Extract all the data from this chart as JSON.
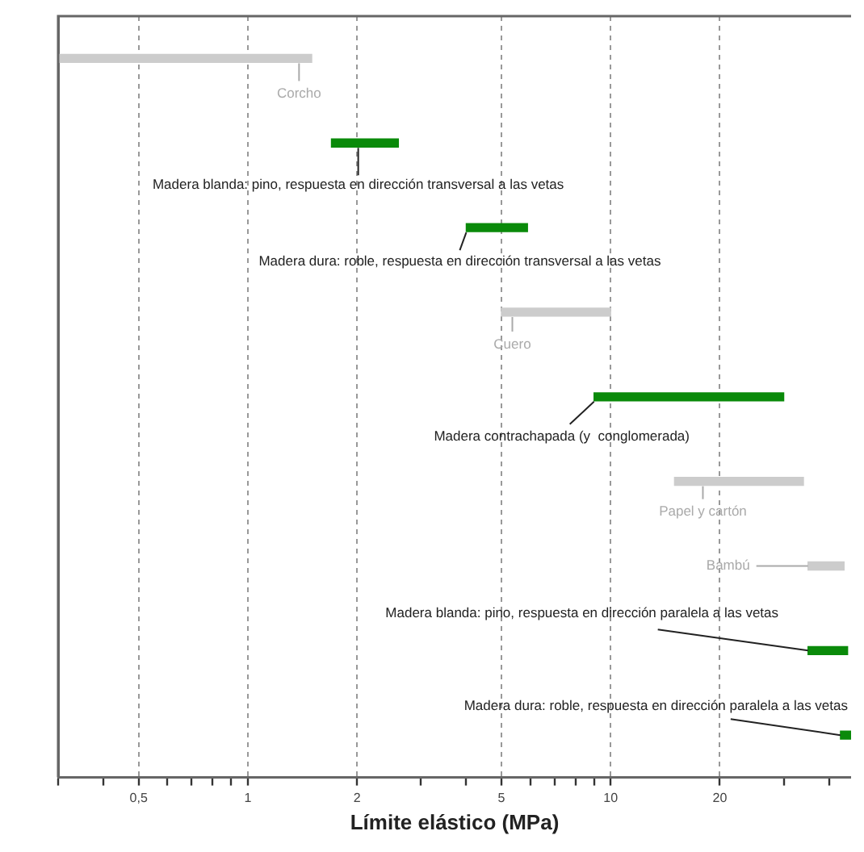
{
  "chart_data": {
    "type": "bar",
    "orientation": "horizontal",
    "xlabel": "Límite elástico (MPa)",
    "categories": [
      null,
      null,
      null,
      null,
      null,
      null,
      null,
      null,
      null
    ],
    "base": [
      0.3,
      1.7,
      4,
      5,
      9,
      15,
      35,
      35,
      43
    ],
    "values": [
      1.2,
      0.9,
      1.9,
      5,
      21,
      19,
      9,
      10,
      3
    ],
    "colors": [
      "#cccccc",
      "#0a8a0a",
      "#0a8a0a",
      "#cccccc",
      "#0a8a0a",
      "#cccccc",
      "#cccccc",
      "#0a8a0a",
      "#0a8a0a"
    ],
    "annotations": [
      "Corcho",
      "Madera blanda: pino, respuesta en dirección transversal a las vetas",
      "Madera dura: roble, respuesta en dirección transversal a las vetas",
      "Cuero",
      "Madera contrachapada (y  conglomerada)",
      "Papel y cartón",
      "Bambú",
      "Madera blanda: pino, respuesta en dirección paralela a las vetas",
      "Madera dura: roble, respuesta en dirección paralela a las vetas"
    ],
    "log": "x",
    "xlim": [
      0.3,
      46
    ],
    "xticks": [
      {
        "value": 0.3,
        "label": null
      },
      {
        "value": 0.4,
        "label": null
      },
      {
        "value": 0.5,
        "label": "0,5"
      },
      {
        "value": 0.6,
        "label": null
      },
      {
        "value": 0.7,
        "label": null
      },
      {
        "value": 0.8,
        "label": null
      },
      {
        "value": 0.9,
        "label": null
      },
      1,
      2,
      {
        "value": 3,
        "label": null
      },
      {
        "value": 4,
        "label": null
      },
      5,
      {
        "value": 6,
        "label": null
      },
      {
        "value": 7,
        "label": null
      },
      {
        "value": 8,
        "label": null
      },
      {
        "value": 9,
        "label": null
      },
      10,
      20,
      {
        "value": 30,
        "label": null
      },
      {
        "value": 40,
        "label": null
      }
    ],
    "grid": "x"
  }
}
